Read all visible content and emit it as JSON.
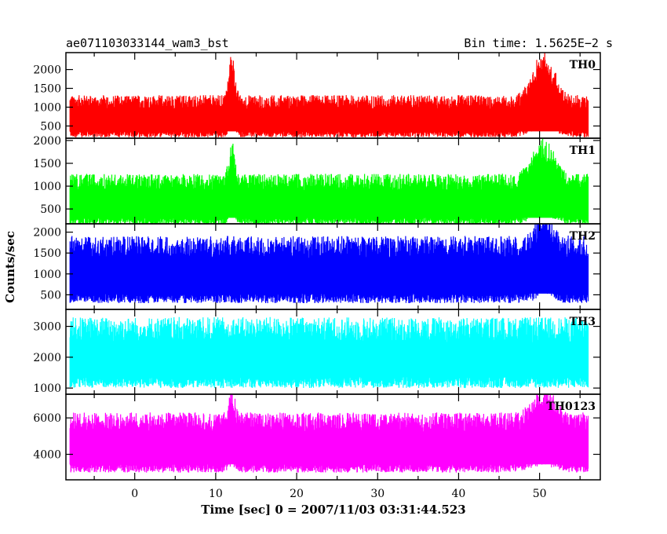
{
  "header": {
    "title": "ae071103033144_wam3_bst",
    "bin_time": "Bin time: 1.5625E−2 s"
  },
  "axes": {
    "ylabel": "Counts/sec",
    "xlabel": "Time [sec] 0 = 2007/11/03 03:31:44.523"
  },
  "chart_data": {
    "type": "line",
    "x_range": [
      -8.5,
      57.5
    ],
    "x_data_range": [
      -8,
      56
    ],
    "x_ticks": [
      0,
      10,
      20,
      30,
      40,
      50
    ],
    "bin_time_s": 0.015625,
    "panels": [
      {
        "name": "TH0",
        "color": "#ff0000",
        "ylim": [
          175,
          2450
        ],
        "y_ticks": [
          500,
          1000,
          1500,
          2000
        ],
        "base_level": 800,
        "spread": 260,
        "lower_floor": 200,
        "flares": [
          {
            "t": 12,
            "peak": 2400,
            "width": 0.5
          },
          {
            "t": 50.5,
            "peak": 2350,
            "width": 1.8
          }
        ]
      },
      {
        "name": "TH1",
        "color": "#00ff00",
        "ylim": [
          175,
          2050
        ],
        "y_ticks": [
          500,
          1000,
          1500,
          2000
        ],
        "base_level": 750,
        "spread": 260,
        "lower_floor": 150,
        "flares": [
          {
            "t": 12,
            "peak": 1950,
            "width": 0.5
          },
          {
            "t": 50.5,
            "peak": 2000,
            "width": 1.8
          }
        ]
      },
      {
        "name": "TH2",
        "color": "#0000ff",
        "ylim": [
          150,
          2200
        ],
        "y_ticks": [
          500,
          1000,
          1500,
          2000
        ],
        "base_level": 1150,
        "spread": 380,
        "lower_floor": 300,
        "flares": [
          {
            "t": 50.5,
            "peak": 2200,
            "width": 1.5
          }
        ]
      },
      {
        "name": "TH3",
        "color": "#00ffff",
        "ylim": [
          800,
          3550
        ],
        "y_ticks": [
          1000,
          2000,
          3000
        ],
        "base_level": 2100,
        "spread": 600,
        "lower_floor": 1000,
        "flares": []
      },
      {
        "name": "TH0123",
        "color": "#ff00ff",
        "ylim": [
          2600,
          7300
        ],
        "y_ticks": [
          4000,
          6000
        ],
        "base_level": 4800,
        "spread": 750,
        "lower_floor": 3000,
        "flares": [
          {
            "t": 12,
            "peak": 7000,
            "width": 0.5
          },
          {
            "t": 50.5,
            "peak": 7300,
            "width": 1.8
          }
        ]
      }
    ]
  }
}
